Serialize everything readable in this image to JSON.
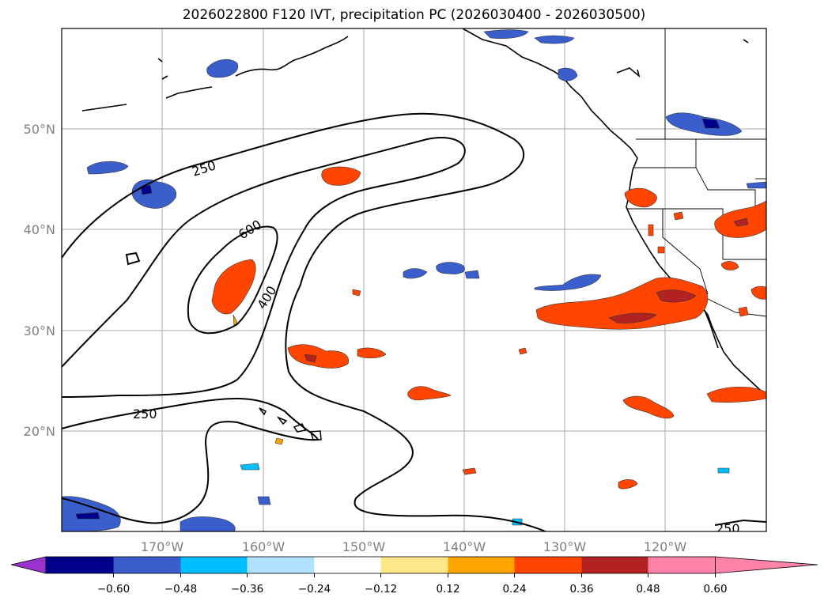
{
  "title": "2026022800 F120 IVT, precipitation PC (2026030400 - 2026030500)",
  "map": {
    "region": "North Pacific and western North America",
    "lat_labels": [
      "50°N",
      "40°N",
      "30°N",
      "20°N"
    ],
    "lon_labels": [
      "170°W",
      "160°W",
      "150°W",
      "140°W",
      "130°W",
      "120°W"
    ],
    "ivt_contour_levels": [
      250,
      400,
      600
    ],
    "ivt_contour_labels": [
      {
        "text": "250",
        "which": "outer-north"
      },
      {
        "text": "600",
        "which": "inner"
      },
      {
        "text": "400",
        "which": "middle"
      },
      {
        "text": "250",
        "which": "outer-south"
      },
      {
        "text": "250",
        "which": "bottom-right"
      }
    ]
  },
  "colorbar": {
    "ticks": [
      "−0.60",
      "−0.48",
      "−0.36",
      "−0.24",
      "−0.12",
      "0.12",
      "0.24",
      "0.36",
      "0.48",
      "0.60"
    ],
    "colors": [
      "#9a32cd",
      "#00008b",
      "#3a5fcd",
      "#00bfff",
      "#b0e2ff",
      "#ffffff",
      "#fde98a",
      "#ffa500",
      "#ff4500",
      "#b22222",
      "#ff83a8"
    ],
    "extend": "both"
  },
  "colors": {
    "pos_low": "#fde98a",
    "pos_mid": "#ffa500",
    "pos_high": "#ff4500",
    "pos_max": "#b22222",
    "neg_low": "#b0e2ff",
    "neg_mid": "#00bfff",
    "neg_high": "#3a5fcd",
    "neg_max": "#00008b"
  }
}
